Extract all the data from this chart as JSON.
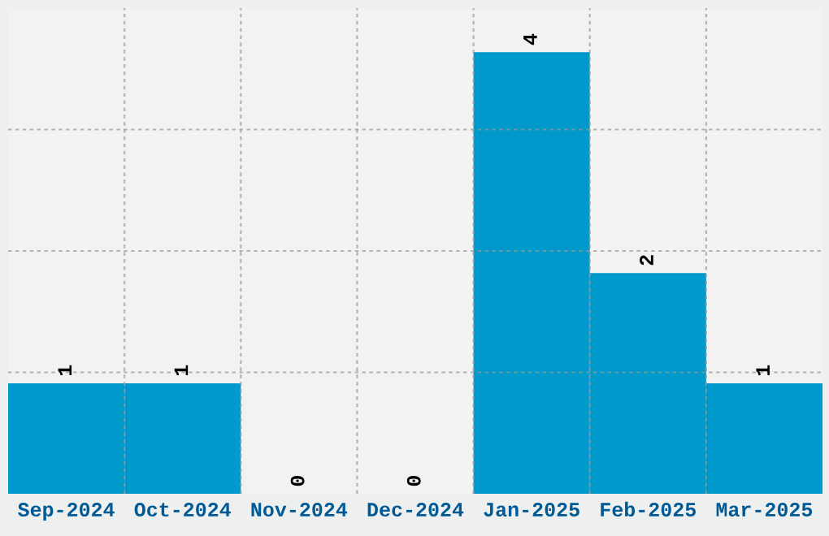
{
  "chart_data": {
    "type": "bar",
    "categories": [
      "Sep-2024",
      "Oct-2024",
      "Nov-2024",
      "Dec-2024",
      "Jan-2025",
      "Feb-2025",
      "Mar-2025"
    ],
    "values": [
      1,
      1,
      0,
      0,
      4,
      2,
      1
    ],
    "color": "#0099cc",
    "ylim": [
      0,
      4.4
    ],
    "yticks": [
      {
        "value": 1.1,
        "label": null
      },
      {
        "value": 2.2,
        "label": null
      },
      {
        "value": 3.3,
        "label": null
      }
    ],
    "tick_labels": "x",
    "grid": true,
    "data_labels": true
  }
}
